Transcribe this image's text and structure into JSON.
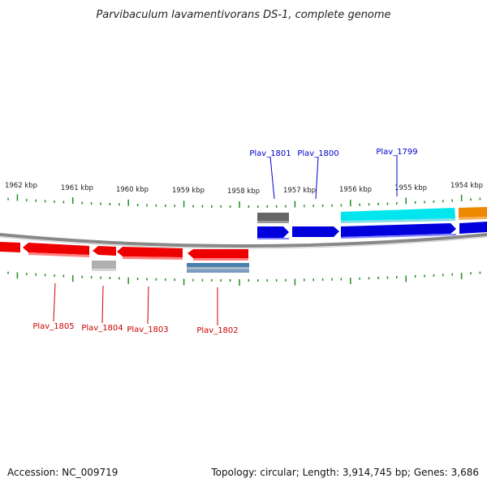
{
  "title": "Parvibaculum lavamentivorans DS-1, complete genome",
  "footer": {
    "accession": "Accession: NC_009719",
    "summary": "Topology: circular; Length: 3,914,745 bp; Genes: 3,686"
  },
  "scale": {
    "tick_labels": [
      "1962 kbp",
      "1961 kbp",
      "1960 kbp",
      "1959 kbp",
      "1958 kbp",
      "1957 kbp",
      "1956 kbp",
      "1955 kbp",
      "1954 kbp"
    ]
  },
  "genes": {
    "plus_strand": [
      {
        "label": "Plav_1801",
        "color": "#0000cc"
      },
      {
        "label": "Plav_1800",
        "color": "#0000cc"
      },
      {
        "label": "Plav_1799",
        "color": "#0000cc"
      }
    ],
    "minus_strand": [
      {
        "label": "Plav_1805",
        "color": "#cc0000"
      },
      {
        "label": "Plav_1804",
        "color": "#cc0000"
      },
      {
        "label": "Plav_1803",
        "color": "#cc0000"
      },
      {
        "label": "Plav_1802",
        "color": "#cc0000"
      }
    ]
  },
  "colors": {
    "cds_forward": "#0000dd",
    "cds_reverse": "#ee0000",
    "ticks": "#228b22",
    "backbone": "#808080",
    "feature_gray_dark": "#666666",
    "feature_gray_light": "#b0b0b0",
    "feature_cyan": "#00e5ee",
    "feature_orange": "#ee8800",
    "feature_steelblue": "#4a7fb0"
  }
}
